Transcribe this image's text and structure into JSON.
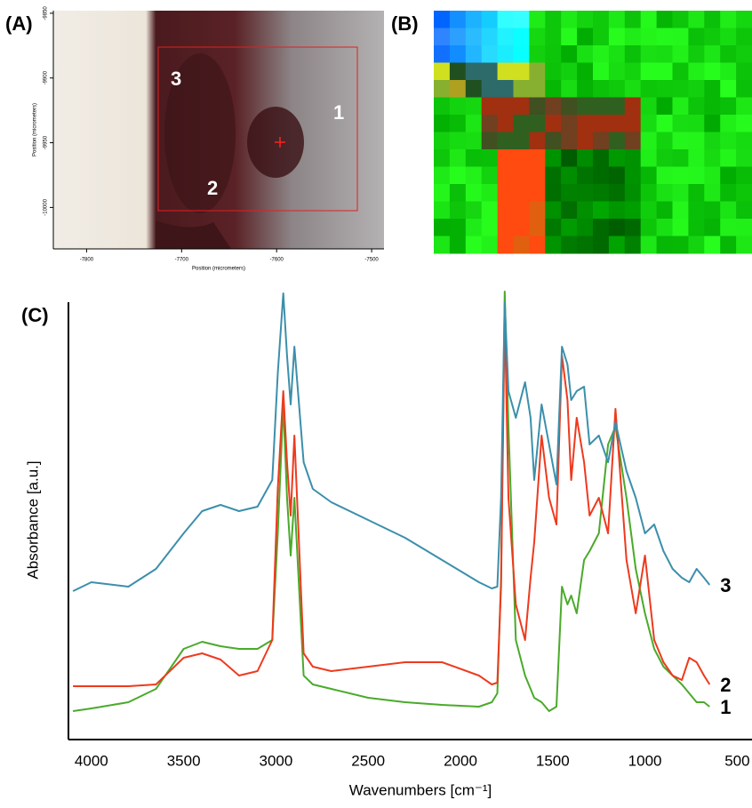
{
  "figure": {
    "panel_labels": [
      "(A)",
      "(B)",
      "(C)"
    ]
  },
  "panel_a": {
    "xlabel": "Position (micrometers)",
    "ylabel": "Position (micrometers)",
    "xlim": [
      -7835,
      -7487
    ],
    "ylim": [
      -9848,
      -10032
    ],
    "xticks": [
      -7800,
      -7700,
      -7600,
      -7500
    ],
    "yticks": [
      -9850,
      -9900,
      -9950,
      -10000
    ],
    "region_labels": [
      "1",
      "2",
      "3"
    ]
  },
  "chart_data": {
    "type": "line",
    "xlabel": "Wavenumbers [cm⁻¹]",
    "ylabel": "Absorbance [a.u.]",
    "xlim": [
      4110,
      420
    ],
    "ylim": [
      0,
      105
    ],
    "xticks": [
      4000,
      3500,
      3000,
      2500,
      2000,
      1500,
      1000,
      500
    ],
    "x": [
      4100,
      4000,
      3800,
      3650,
      3500,
      3400,
      3300,
      3200,
      3100,
      3020,
      2990,
      2960,
      2940,
      2920,
      2900,
      2850,
      2800,
      2700,
      2500,
      2300,
      2100,
      1900,
      1830,
      1800,
      1780,
      1760,
      1740,
      1700,
      1650,
      1620,
      1600,
      1560,
      1520,
      1480,
      1450,
      1420,
      1400,
      1370,
      1330,
      1300,
      1250,
      1200,
      1160,
      1100,
      1050,
      1000,
      950,
      900,
      850,
      800,
      760,
      720,
      680,
      650
    ],
    "series": [
      {
        "name": "1",
        "color": "#4aaa2a",
        "values": [
          6.4,
          7,
          8.4,
          11.4,
          20.4,
          22,
          21,
          20.4,
          20.4,
          22.4,
          46.4,
          75.4,
          54.4,
          41.4,
          54.4,
          14.4,
          12.4,
          11.4,
          9.4,
          8.4,
          7.8,
          7.4,
          8.4,
          10.4,
          36.4,
          100.8,
          70.4,
          22.4,
          14.4,
          11.4,
          9.4,
          8.4,
          6.4,
          7.4,
          34.4,
          30.4,
          32.4,
          28.4,
          40.4,
          42.4,
          46.4,
          66.4,
          70.4,
          54.4,
          38.4,
          28.4,
          20.4,
          16.4,
          14.4,
          12.4,
          10.4,
          8.4,
          8.4,
          7.4
        ]
      },
      {
        "name": "2",
        "color": "#ee3a1e",
        "values": [
          12,
          12,
          12,
          12.4,
          18.4,
          19.4,
          18,
          14.4,
          15.4,
          22.4,
          56.4,
          78.4,
          62.4,
          50.4,
          68.4,
          19.4,
          16.4,
          15.4,
          16.4,
          17.4,
          17.4,
          14.4,
          12.4,
          12.8,
          34.4,
          96.4,
          54.4,
          30.4,
          22.4,
          36.4,
          44.4,
          68.4,
          54.4,
          48.4,
          86.4,
          76.4,
          58.4,
          72.4,
          62.4,
          50.4,
          54.4,
          46.4,
          74.4,
          40.4,
          28.4,
          41.4,
          22.4,
          17.4,
          14.4,
          13.4,
          18.4,
          17.4,
          14.4,
          12.4
        ]
      },
      {
        "name": "3",
        "color": "#3c8fab",
        "values": [
          33.4,
          35.4,
          34.4,
          38.4,
          46.4,
          51.4,
          52.8,
          51.4,
          52.4,
          58.4,
          82.4,
          100.4,
          86.4,
          75.4,
          88.4,
          62.4,
          56.4,
          53.4,
          49.4,
          45.4,
          40.4,
          35.4,
          34,
          34.4,
          54.4,
          98.4,
          78.4,
          72.4,
          80.4,
          72.4,
          58.4,
          75.4,
          66.4,
          57.4,
          88.4,
          84.4,
          76.4,
          78.4,
          79.4,
          66.4,
          68.4,
          62.4,
          71.4,
          60.4,
          54.4,
          46.4,
          48.4,
          42.4,
          38.4,
          36.4,
          35.4,
          38.4,
          36.4,
          34.8
        ]
      }
    ]
  }
}
